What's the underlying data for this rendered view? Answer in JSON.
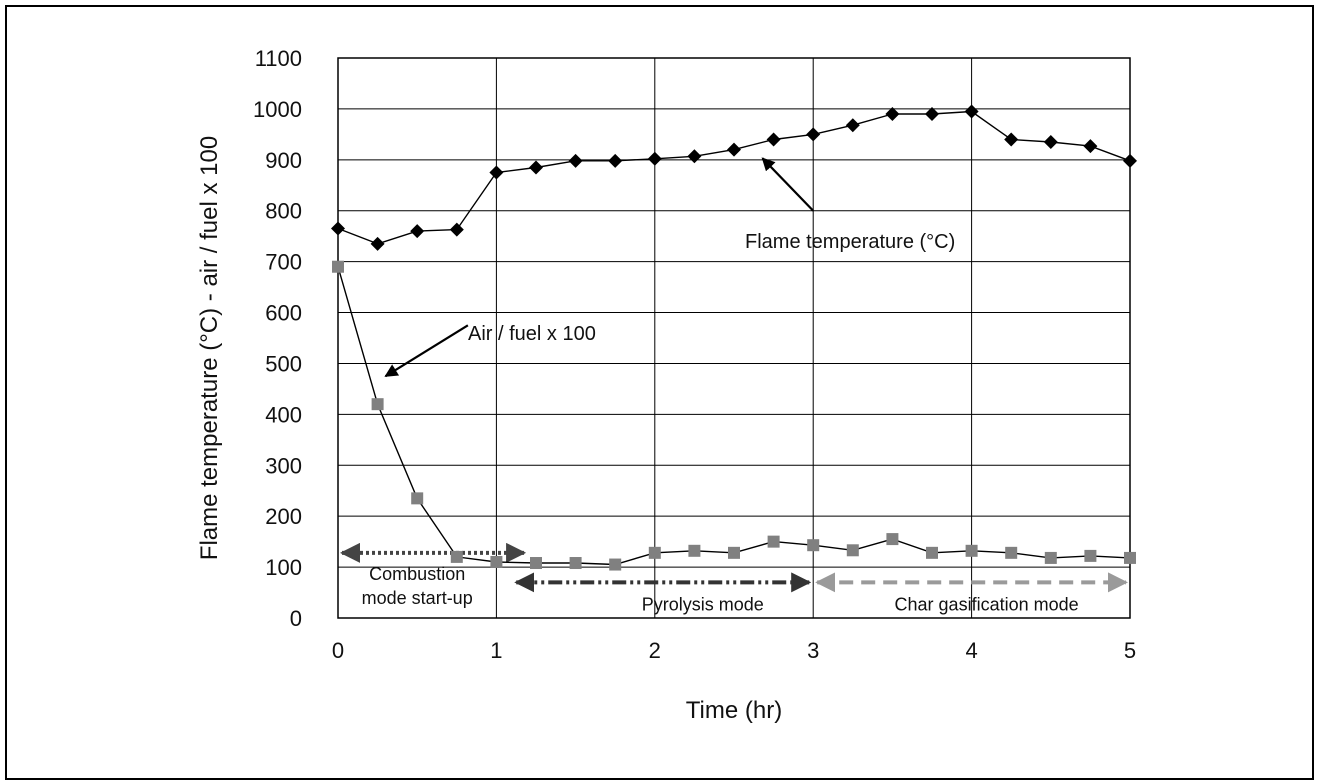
{
  "chart_data": {
    "type": "line",
    "xlabel": "Time (hr)",
    "ylabel": "Flame temperature (°C) - air / fuel x 100",
    "xlim": [
      0,
      5
    ],
    "ylim": [
      0,
      1100
    ],
    "x_ticks": [
      "0",
      "1",
      "2",
      "3",
      "4",
      "5"
    ],
    "y_ticks": [
      "0",
      "100",
      "200",
      "300",
      "400",
      "500",
      "600",
      "700",
      "800",
      "900",
      "1000",
      "1100"
    ],
    "grid": true,
    "series": [
      {
        "name": "Flame temperature (°C)",
        "marker": "diamond",
        "color": "#000000",
        "x": [
          0,
          0.25,
          0.5,
          0.75,
          1,
          1.25,
          1.5,
          1.75,
          2,
          2.25,
          2.5,
          2.75,
          3,
          3.25,
          3.5,
          3.75,
          4,
          4.25,
          4.5,
          4.75,
          5
        ],
        "y": [
          765,
          735,
          760,
          763,
          875,
          885,
          898,
          898,
          902,
          907,
          920,
          940,
          950,
          968,
          990,
          990,
          995,
          940,
          935,
          927,
          898
        ]
      },
      {
        "name": "Air / fuel x 100",
        "marker": "square",
        "color": "#808080",
        "x": [
          0,
          0.25,
          0.5,
          0.75,
          1,
          1.25,
          1.5,
          1.75,
          2,
          2.25,
          2.5,
          2.75,
          3,
          3.25,
          3.5,
          3.75,
          4,
          4.25,
          4.5,
          4.75,
          5
        ],
        "y": [
          690,
          420,
          235,
          120,
          110,
          108,
          108,
          105,
          128,
          132,
          128,
          150,
          143,
          133,
          155,
          128,
          132,
          128,
          118,
          122,
          118
        ]
      }
    ],
    "annotations": [
      {
        "text": "Flame temperature (°C)",
        "arrow_from": [
          3.0,
          800
        ],
        "arrow_to": [
          2.68,
          903
        ]
      },
      {
        "text": "Air / fuel x 100",
        "arrow_from": [
          0.82,
          575
        ],
        "arrow_to": [
          0.3,
          475
        ]
      }
    ],
    "modes": [
      {
        "label": "Combustion",
        "label2": "mode start-up",
        "from": 0,
        "to": 1.2,
        "y": 128,
        "style": "dotted",
        "color": "#444444"
      },
      {
        "label": "Pyrolysis mode",
        "from": 1.1,
        "to": 3.0,
        "y": 70,
        "style": "dashdot",
        "color": "#333333"
      },
      {
        "label": "Char gasification mode",
        "from": 3.0,
        "to": 5.0,
        "y": 70,
        "style": "dashed",
        "color": "#9a9a9a"
      }
    ]
  }
}
